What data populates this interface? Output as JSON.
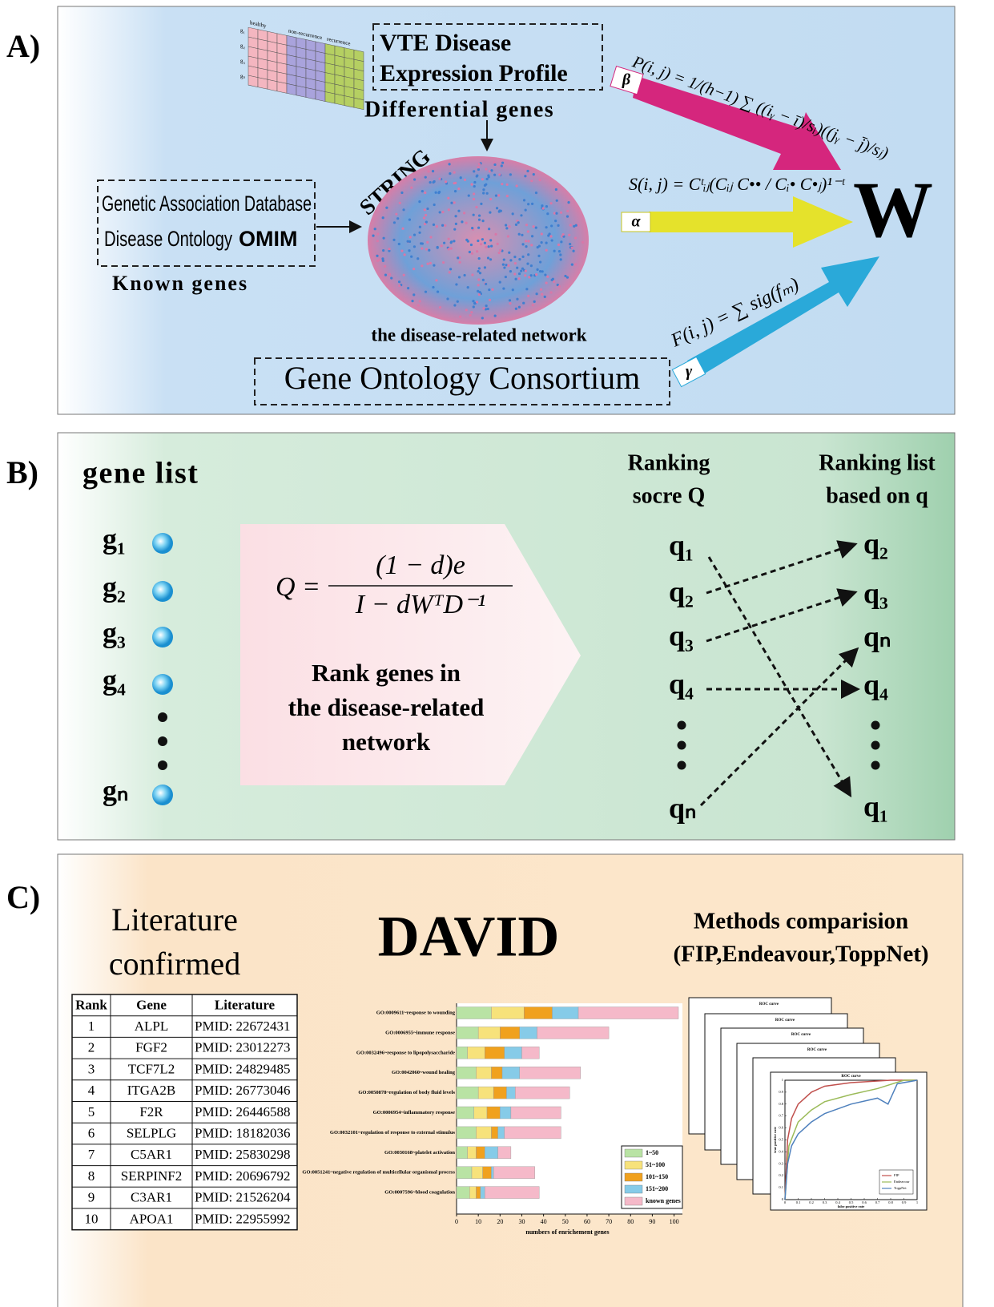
{
  "panels": {
    "a": "A)",
    "b": "B)",
    "c": "C)"
  },
  "panel_a": {
    "vte": [
      "VTE Disease",
      "Expression Profile"
    ],
    "differential": "Differential genes",
    "heatmap_columns": [
      "healthy",
      "non-recurrence",
      "recurrence"
    ],
    "heatmap_rows": [
      "g₁",
      "g₂",
      "g₃",
      "gₙ"
    ],
    "known_db": [
      "Genetic Association Database",
      "Disease Ontology",
      "OMIM"
    ],
    "known_genes": "Known genes",
    "string": "STRING",
    "network": "the disease-related network",
    "go": "Gene Ontology Consortium",
    "w": "W",
    "formula_p": "P(i, j) = 1/(h−1) ∑ ((iᵧ − ī)/sᵢ)((jᵧ − j̄)/sⱼ)",
    "formula_s": "S(i, j) = Cᵗᵢⱼ(Cᵢⱼ C•• / Cᵢ• C•ⱼ)¹⁻ᵗ",
    "formula_f": "F(i, j) = ∑ sig(fₘ)",
    "beta": "β",
    "alpha": "α",
    "gamma": "γ"
  },
  "panel_b": {
    "gene_list": "gene list",
    "genes": [
      "g₁",
      "g₂",
      "g₃",
      "g₄",
      "gₙ"
    ],
    "q_formula": {
      "lhs": "Q =",
      "num": "(1 − d)e",
      "den": "I − dWᵀD⁻¹"
    },
    "rank_text": [
      "Rank genes in",
      "the disease-related",
      "network"
    ],
    "score_title": [
      "Ranking",
      "socre Q"
    ],
    "list_title": [
      "Ranking list",
      "based on q"
    ],
    "left_q": [
      "q₁",
      "q₂",
      "q₃",
      "q₄",
      "qₙ"
    ],
    "right_q": [
      "q₂",
      "q₃",
      "qₙ",
      "q₄",
      "q₁"
    ]
  },
  "panel_c": {
    "literature": [
      "Literature",
      "confirmed"
    ],
    "david": "DAVID",
    "methods": [
      "Methods comparision",
      "(FIP,Endeavour,ToppNet)"
    ],
    "roc_back_titles": [
      "ROC curve",
      "ROC curve",
      "ROC curve",
      "ROC curve"
    ],
    "table": {
      "header": [
        "Rank",
        "Gene",
        "Literature"
      ],
      "rows": [
        [
          "1",
          "ALPL",
          "PMID:  22672431"
        ],
        [
          "2",
          "FGF2",
          "PMID:  23012273"
        ],
        [
          "3",
          "TCF7L2",
          "PMID:  24829485"
        ],
        [
          "4",
          "ITGA2B",
          "PMID:  26773046"
        ],
        [
          "5",
          "F2R",
          "PMID:  26446588"
        ],
        [
          "6",
          "SELPLG",
          "PMID:  18182036"
        ],
        [
          "7",
          "C5AR1",
          "PMID:  25830298"
        ],
        [
          "8",
          "SERPINF2",
          "PMID:  20696792"
        ],
        [
          "9",
          "C3AR1",
          "PMID: 21526204"
        ],
        [
          "10",
          "APOA1",
          "PMID:  22955992"
        ]
      ]
    }
  },
  "chart_data": [
    {
      "type": "bar",
      "orientation": "horizontal",
      "stacked": true,
      "categories": [
        "GO:0009611~response to wounding",
        "GO:0006955~immune response",
        "GO:0032496~response to lipopolysaccharide",
        "GO:0042060~wound healing",
        "GO:0050878~regulation of body fluid levels",
        "GO:0006954~inflammatory response",
        "GO:0032101~regulation of response to external stimulus",
        "GO:0030168~platelet activation",
        "GO:0051241~negative regulation of multicellular organismal process",
        "GO:0007596~blood coagulation"
      ],
      "series": [
        {
          "name": "1~50",
          "color": "#b9e3a4",
          "values": [
            16,
            10,
            5,
            9,
            10,
            8,
            9,
            5,
            7,
            6
          ]
        },
        {
          "name": "51~100",
          "color": "#f7e27b",
          "values": [
            15,
            10,
            8,
            7,
            7,
            6,
            7,
            4,
            5,
            3
          ]
        },
        {
          "name": "101~150",
          "color": "#f0a11e",
          "values": [
            13,
            9,
            9,
            5,
            6,
            6,
            3,
            4,
            4,
            2
          ]
        },
        {
          "name": "151~200",
          "color": "#86cbe8",
          "values": [
            12,
            8,
            8,
            8,
            4,
            5,
            3,
            6,
            1,
            2
          ]
        },
        {
          "name": "known genes",
          "color": "#f5b9c9",
          "values": [
            46,
            33,
            8,
            28,
            25,
            23,
            26,
            6,
            19,
            25
          ]
        }
      ],
      "xlabel": "numbers of enrichement genes",
      "xlim": [
        0,
        102
      ],
      "xticks": [
        0,
        10,
        20,
        30,
        40,
        50,
        60,
        70,
        80,
        90,
        100
      ]
    },
    {
      "type": "line",
      "title": "ROC curve",
      "xlabel": "false positive rate",
      "ylabel": "true positive rate",
      "xlim": [
        0,
        1
      ],
      "ylim": [
        0,
        1
      ],
      "xticks": [
        0,
        0.1,
        0.2,
        0.3,
        0.4,
        0.5,
        0.6,
        0.7,
        0.8,
        0.9,
        1
      ],
      "yticks": [
        0,
        0.1,
        0.2,
        0.3,
        0.4,
        0.5,
        0.6,
        0.7,
        0.8,
        0.9,
        1
      ],
      "legend": "lower right",
      "series": [
        {
          "name": "FIP",
          "color": "#c0504d",
          "x": [
            0,
            0.02,
            0.05,
            0.1,
            0.2,
            0.3,
            0.5,
            0.8,
            1
          ],
          "values": [
            0,
            0.5,
            0.68,
            0.8,
            0.9,
            0.95,
            0.98,
            1,
            1
          ]
        },
        {
          "name": "Endeavour",
          "color": "#9bbb59",
          "x": [
            0,
            0.03,
            0.1,
            0.2,
            0.3,
            0.5,
            0.7,
            0.9,
            1
          ],
          "values": [
            0,
            0.45,
            0.65,
            0.75,
            0.82,
            0.88,
            0.93,
            1,
            1
          ]
        },
        {
          "name": "ToppNet",
          "color": "#4f81bd",
          "x": [
            0,
            0.02,
            0.05,
            0.1,
            0.2,
            0.3,
            0.5,
            0.7,
            0.78,
            0.85,
            1
          ],
          "values": [
            0,
            0.3,
            0.45,
            0.55,
            0.65,
            0.72,
            0.8,
            0.85,
            0.8,
            0.97,
            1
          ]
        }
      ]
    }
  ]
}
